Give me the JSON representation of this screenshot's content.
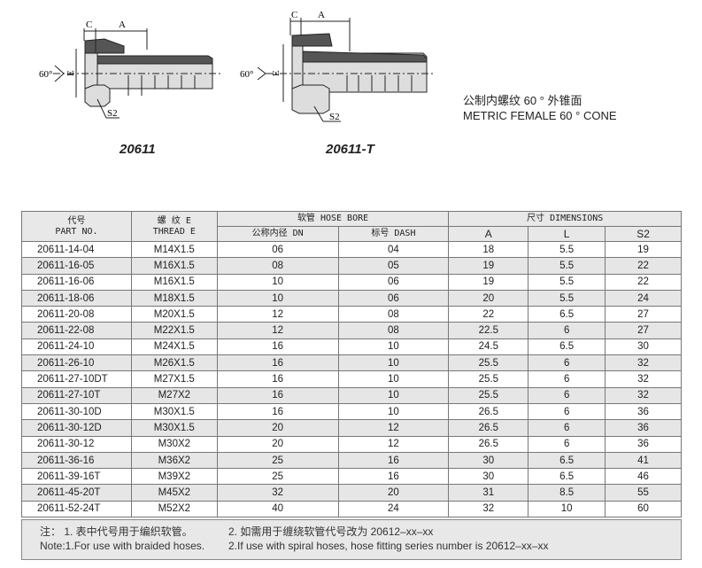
{
  "drawings": [
    {
      "model": "20611",
      "labels": {
        "c": "C",
        "a": "A",
        "angle": "60°",
        "e": "E",
        "s2": "S2"
      }
    },
    {
      "model": "20611-T",
      "labels": {
        "c": "C",
        "a": "A",
        "angle": "60°",
        "e": "E",
        "s2": "S2"
      }
    }
  ],
  "description": {
    "cn": "公制内螺纹 60 ° 外锥面",
    "en": "METRIC FEMALE 60 °  CONE"
  },
  "table": {
    "headers": {
      "part_cn": "代号",
      "part_en": "PART NO.",
      "thread_cn": "螺 纹 E",
      "thread_en": "THREAD E",
      "hose": "软管  HOSE BORE",
      "dims": "尺寸 DIMENSIONS",
      "dn": "公称内径 DN",
      "dash": "标号 DASH",
      "a": "A",
      "l": "L",
      "s2": "S2"
    },
    "rows": [
      [
        "20611-14-04",
        "M14X1.5",
        "06",
        "04",
        "18",
        "5.5",
        "19"
      ],
      [
        "20611-16-05",
        "M16X1.5",
        "08",
        "05",
        "19",
        "5.5",
        "22"
      ],
      [
        "20611-16-06",
        "M16X1.5",
        "10",
        "06",
        "19",
        "5.5",
        "22"
      ],
      [
        "20611-18-06",
        "M18X1.5",
        "10",
        "06",
        "20",
        "5.5",
        "24"
      ],
      [
        "20611-20-08",
        "M20X1.5",
        "12",
        "08",
        "22",
        "6.5",
        "27"
      ],
      [
        "20611-22-08",
        "M22X1.5",
        "12",
        "08",
        "22.5",
        "6",
        "27"
      ],
      [
        "20611-24-10",
        "M24X1.5",
        "16",
        "10",
        "24.5",
        "6.5",
        "30"
      ],
      [
        "20611-26-10",
        "M26X1.5",
        "16",
        "10",
        "25.5",
        "6",
        "32"
      ],
      [
        "20611-27-10DT",
        "M27X1.5",
        "16",
        "10",
        "25.5",
        "6",
        "32"
      ],
      [
        "20611-27-10T",
        "M27X2",
        "16",
        "10",
        "25.5",
        "6",
        "32"
      ],
      [
        "20611-30-10D",
        "M30X1.5",
        "16",
        "10",
        "26.5",
        "6",
        "36"
      ],
      [
        "20611-30-12D",
        "M30X1.5",
        "20",
        "12",
        "26.5",
        "6",
        "36"
      ],
      [
        "20611-30-12",
        "M30X2",
        "20",
        "12",
        "26.5",
        "6",
        "36"
      ],
      [
        "20611-36-16",
        "M36X2",
        "25",
        "16",
        "30",
        "6.5",
        "41"
      ],
      [
        "20611-39-16T",
        "M39X2",
        "25",
        "16",
        "30",
        "6.5",
        "46"
      ],
      [
        "20611-45-20T",
        "M45X2",
        "32",
        "20",
        "31",
        "8.5",
        "55"
      ],
      [
        "20611-52-24T",
        "M52X2",
        "40",
        "24",
        "32",
        "10",
        "60"
      ]
    ]
  },
  "notes": {
    "cn1": "注： 1. 表中代号用于编织软管。",
    "cn2": "2. 如需用于缠绕软管代号改为 20612–xx–xx",
    "en1": "Note:1.For use with braided hoses.",
    "en2": "2.If use with spiral hoses, hose fitting series number is 20612–xx–xx"
  }
}
